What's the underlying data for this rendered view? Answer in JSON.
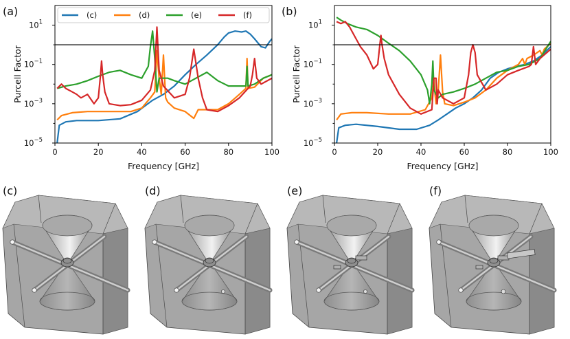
{
  "chart_data": [
    {
      "type": "line",
      "panel": "(a)",
      "xlabel": "Frequency [GHz]",
      "ylabel": "Purcell Factor",
      "xlim": [
        0,
        100
      ],
      "ylim": [
        1e-05,
        100
      ],
      "yscale": "log",
      "x_ticks": [
        "0",
        "20",
        "40",
        "60",
        "80",
        "100"
      ],
      "y_ticks": [
        {
          "base": "10",
          "exp": "−5"
        },
        {
          "base": "10",
          "exp": "−3"
        },
        {
          "base": "10",
          "exp": "−1"
        },
        {
          "base": "10",
          "exp": "1"
        }
      ],
      "reference_line": 1,
      "legend": {
        "placement": "top",
        "entries": [
          "(c)",
          "(d)",
          "(e)",
          "(f)"
        ]
      },
      "series": [
        {
          "name": "(c)",
          "color": "#1f77b4",
          "x": [
            1,
            2,
            5,
            10,
            20,
            30,
            38,
            45,
            50,
            55,
            60,
            65,
            70,
            75,
            78,
            80,
            83,
            86,
            88,
            90,
            92,
            95,
            97,
            99,
            100
          ],
          "y": [
            1e-05,
            8e-05,
            0.00012,
            0.00014,
            0.00014,
            0.00017,
            0.0004,
            0.0015,
            0.003,
            0.008,
            0.03,
            0.1,
            0.3,
            1,
            2.5,
            4,
            5,
            4.5,
            5,
            3.5,
            2,
            0.8,
            0.7,
            1.5,
            2
          ]
        },
        {
          "name": "(d)",
          "color": "#ff7f0e",
          "x": [
            1,
            3,
            8,
            15,
            25,
            35,
            40,
            44,
            46,
            47,
            48,
            49,
            50,
            51,
            52,
            55,
            60,
            64,
            66,
            70,
            75,
            80,
            85,
            88,
            88.5,
            89,
            92,
            96,
            100
          ],
          "y": [
            0.00015,
            0.00025,
            0.00035,
            0.0004,
            0.0004,
            0.0004,
            0.0006,
            0.002,
            0.004,
            0.5,
            0.02,
            0.003,
            0.3,
            0.002,
            0.0012,
            0.0006,
            0.0004,
            0.00018,
            0.0005,
            0.0005,
            0.0005,
            0.001,
            0.003,
            0.006,
            0.2,
            0.006,
            0.007,
            0.02,
            0.03
          ]
        },
        {
          "name": "(e)",
          "color": "#2ca02c",
          "x": [
            1,
            5,
            10,
            15,
            20,
            25,
            30,
            35,
            40,
            43,
            44,
            45,
            46,
            47,
            48,
            52,
            55,
            60,
            65,
            70,
            75,
            80,
            85,
            88,
            88.5,
            89,
            92,
            96,
            100
          ],
          "y": [
            0.006,
            0.008,
            0.01,
            0.015,
            0.025,
            0.04,
            0.05,
            0.03,
            0.02,
            0.08,
            0.8,
            5,
            0.2,
            0.004,
            0.02,
            0.02,
            0.015,
            0.01,
            0.02,
            0.04,
            0.015,
            0.008,
            0.008,
            0.008,
            0.08,
            0.008,
            0.01,
            0.02,
            0.03
          ]
        },
        {
          "name": "(f)",
          "color": "#d62728",
          "x": [
            1,
            3,
            5,
            8,
            10,
            12,
            15,
            18,
            20,
            21,
            21.5,
            22,
            23,
            25,
            30,
            35,
            40,
            44,
            46,
            47,
            48,
            50,
            55,
            60,
            62,
            64,
            66,
            68,
            70,
            75,
            80,
            85,
            90,
            91,
            92,
            93,
            95,
            100
          ],
          "y": [
            0.006,
            0.01,
            0.006,
            0.004,
            0.003,
            0.002,
            0.003,
            0.001,
            0.002,
            0.03,
            0.15,
            0.03,
            0.004,
            0.001,
            0.0008,
            0.0009,
            0.0015,
            0.005,
            0.05,
            8,
            0.05,
            0.008,
            0.002,
            0.003,
            0.02,
            0.6,
            0.02,
            0.002,
            0.0005,
            0.0004,
            0.0008,
            0.002,
            0.008,
            0.03,
            0.2,
            0.02,
            0.01,
            0.02
          ]
        }
      ]
    },
    {
      "type": "line",
      "panel": "(b)",
      "xlabel": "Frequency [GHz]",
      "ylabel": "Purcell Factor",
      "xlim": [
        0,
        100
      ],
      "ylim": [
        1e-05,
        100
      ],
      "yscale": "log",
      "x_ticks": [
        "0",
        "20",
        "40",
        "60",
        "80",
        "100"
      ],
      "y_ticks": [
        {
          "base": "10",
          "exp": "−5"
        },
        {
          "base": "10",
          "exp": "−3"
        },
        {
          "base": "10",
          "exp": "−1"
        },
        {
          "base": "10",
          "exp": "1"
        }
      ],
      "reference_line": 1,
      "series": [
        {
          "name": "(c)",
          "color": "#1f77b4",
          "x": [
            1,
            2,
            5,
            10,
            20,
            30,
            38,
            44,
            48,
            52,
            56,
            60,
            64,
            68,
            72,
            76,
            80,
            84,
            88,
            92,
            96,
            100
          ],
          "y": [
            1e-05,
            6e-05,
            8e-05,
            9e-05,
            7e-05,
            5e-05,
            5e-05,
            8e-05,
            0.00015,
            0.0003,
            0.0006,
            0.001,
            0.002,
            0.005,
            0.02,
            0.04,
            0.06,
            0.08,
            0.1,
            0.15,
            0.3,
            0.8
          ]
        },
        {
          "name": "(d)",
          "color": "#ff7f0e",
          "x": [
            1,
            3,
            8,
            15,
            25,
            35,
            42,
            45,
            46,
            46.5,
            47,
            48,
            49,
            50,
            51,
            55,
            60,
            65,
            70,
            75,
            80,
            85,
            87,
            88,
            89,
            92,
            95,
            96,
            97,
            100
          ],
          "y": [
            0.00015,
            0.0003,
            0.00035,
            0.00035,
            0.0003,
            0.0003,
            0.0005,
            0.002,
            0.02,
            0.003,
            0.001,
            0.005,
            0.3,
            0.004,
            0.001,
            0.0008,
            0.0012,
            0.002,
            0.005,
            0.02,
            0.05,
            0.1,
            0.2,
            0.1,
            0.2,
            0.3,
            0.5,
            0.3,
            0.6,
            1.2
          ]
        },
        {
          "name": "(e)",
          "color": "#2ca02c",
          "x": [
            1,
            3,
            6,
            10,
            15,
            20,
            25,
            30,
            35,
            40,
            43,
            44,
            45,
            45.5,
            46,
            47,
            48,
            50,
            55,
            60,
            65,
            70,
            75,
            80,
            85,
            90,
            95,
            100
          ],
          "y": [
            25,
            18,
            12,
            8,
            6,
            3,
            1.2,
            0.5,
            0.15,
            0.03,
            0.005,
            0.001,
            0.01,
            0.15,
            0.005,
            0.003,
            0.002,
            0.003,
            0.004,
            0.006,
            0.01,
            0.02,
            0.04,
            0.05,
            0.08,
            0.1,
            0.2,
            1.5
          ]
        },
        {
          "name": "(f)",
          "color": "#d62728",
          "x": [
            1,
            3,
            5,
            7,
            10,
            12,
            15,
            18,
            20,
            21,
            21.5,
            22,
            23,
            25,
            30,
            35,
            40,
            45,
            46,
            47,
            47.5,
            48,
            50,
            55,
            60,
            62,
            63,
            64,
            65,
            66,
            70,
            75,
            80,
            85,
            90,
            91,
            92,
            93,
            95,
            100
          ],
          "y": [
            15,
            12,
            15,
            8,
            2,
            0.8,
            0.3,
            0.06,
            0.1,
            1,
            3,
            1,
            0.2,
            0.03,
            0.003,
            0.0006,
            0.0003,
            0.0005,
            0.02,
            0.02,
            0.001,
            0.005,
            0.002,
            0.001,
            0.002,
            0.03,
            0.4,
            1,
            0.4,
            0.03,
            0.005,
            0.01,
            0.03,
            0.05,
            0.08,
            0.1,
            0.8,
            0.1,
            0.2,
            0.6
          ]
        }
      ]
    }
  ],
  "renders": [
    {
      "label": "(c)",
      "variant": "c"
    },
    {
      "label": "(d)",
      "variant": "d"
    },
    {
      "label": "(e)",
      "variant": "e"
    },
    {
      "label": "(f)",
      "variant": "f"
    }
  ]
}
